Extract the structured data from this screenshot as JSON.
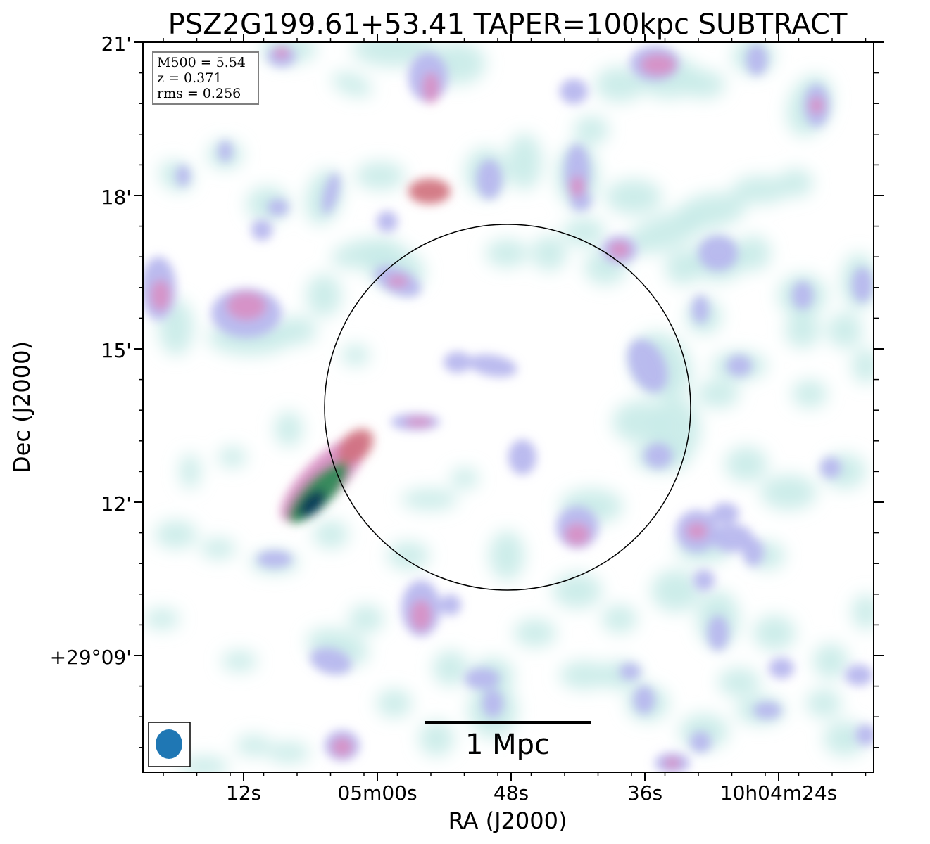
{
  "title": "PSZ2G199.61+53.41 TAPER=100kpc SUBTRACT",
  "info_box": {
    "lines": [
      "M500 = 5.54",
      "z = 0.371",
      "rms = 0.256"
    ]
  },
  "x_axis": {
    "label": "RA (J2000)",
    "tick_labels": [
      "12s",
      "05m00s",
      "48s",
      "36s",
      "10h04m24s"
    ]
  },
  "y_axis": {
    "label": "Dec (J2000)",
    "tick_labels": [
      "21'",
      "18'",
      "15'",
      "12'",
      "+29°09'"
    ]
  },
  "scale_bar": {
    "label": "1 Mpc"
  },
  "icons": {
    "beam": "beam-ellipse-icon"
  },
  "colors": {
    "faint": "#c8ebe8",
    "lavender": "#b7b7ee",
    "pink": "#d98fc4",
    "red": "#cf6f7a",
    "green": "#2f8a57",
    "navy": "#0e3d58",
    "beam": "#1f77b4",
    "circle": "#000000"
  }
}
